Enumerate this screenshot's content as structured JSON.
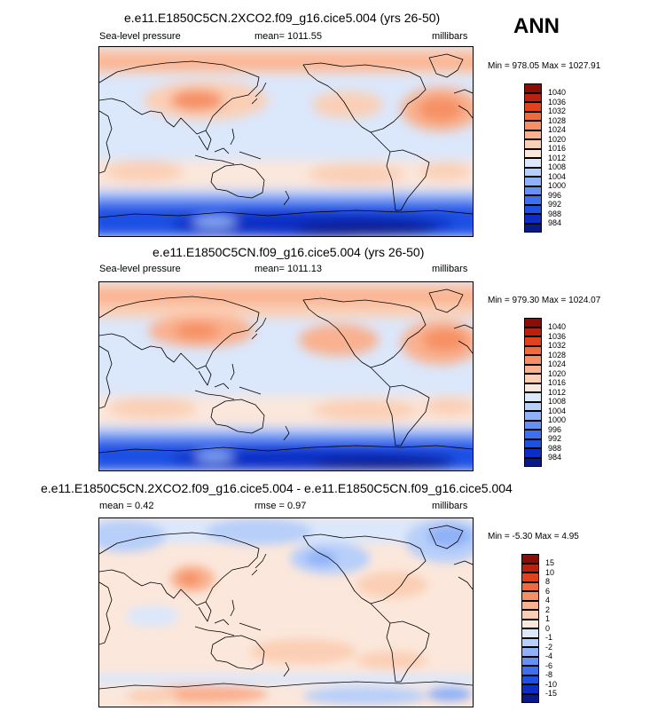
{
  "header": {
    "season": "ANN"
  },
  "palette": {
    "diverging": [
      "#081a8a",
      "#0c2ec4",
      "#1d50e3",
      "#3d6fef",
      "#6591f4",
      "#8fb1f7",
      "#b7cff9",
      "#dbe7fb",
      "#fbe7db",
      "#fbcfb5",
      "#f9b18f",
      "#f69064",
      "#f06a3d",
      "#e0421d",
      "#bc2110",
      "#8c0c06"
    ]
  },
  "panels": [
    {
      "title": "e.e11.E1850C5CN.2XCO2.f09_g16.cice5.004 (yrs 26-50)",
      "left_label": "Sea-level pressure",
      "center_label": "mean= 1011.55",
      "right_label": "millibars",
      "minmax": "Min = 978.05 Max = 1027.91",
      "colorbar_labels": [
        "1040",
        "1036",
        "1032",
        "1028",
        "1024",
        "1020",
        "1016",
        "1012",
        "1008",
        "1004",
        "1000",
        "996",
        "992",
        "988",
        "984"
      ]
    },
    {
      "title": "e.e11.E1850C5CN.f09_g16.cice5.004 (yrs 26-50)",
      "left_label": "Sea-level pressure",
      "center_label": "mean= 1011.13",
      "right_label": "millibars",
      "minmax": "Min = 979.30 Max = 1024.07",
      "colorbar_labels": [
        "1040",
        "1036",
        "1032",
        "1028",
        "1024",
        "1020",
        "1016",
        "1012",
        "1008",
        "1004",
        "1000",
        "996",
        "992",
        "988",
        "984"
      ]
    },
    {
      "title": "e.e11.E1850C5CN.2XCO2.f09_g16.cice5.004 - e.e11.E1850C5CN.f09_g16.cice5.004",
      "left_label": "mean =  0.42",
      "center_label": "rmse =  0.97",
      "right_label": "millibars",
      "minmax": "Min =  -5.30 Max =   4.95",
      "colorbar_labels": [
        "15",
        "10",
        "8",
        "6",
        "4",
        "2",
        "1",
        "0",
        "-1",
        "-2",
        "-4",
        "-6",
        "-8",
        "-10",
        "-15"
      ]
    }
  ]
}
